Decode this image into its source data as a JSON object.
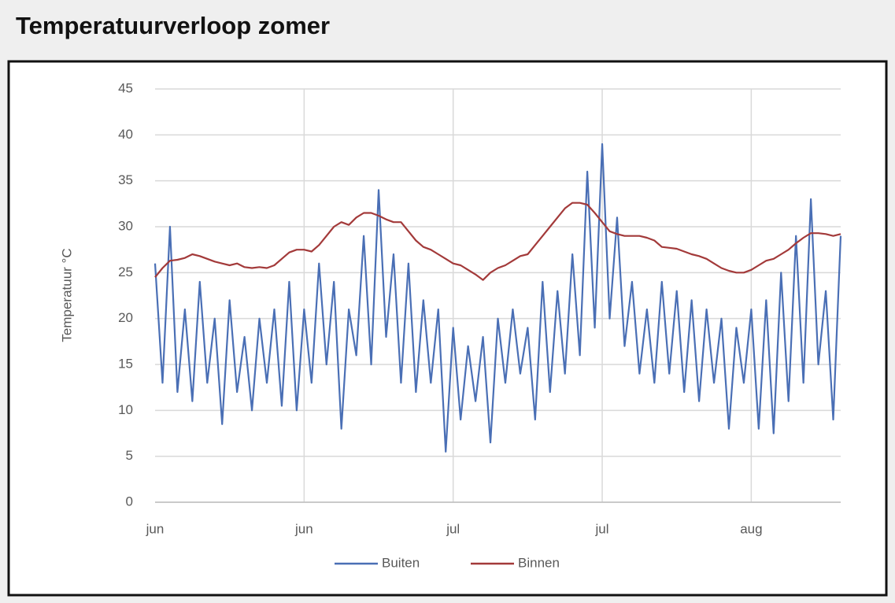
{
  "chart_data": {
    "type": "line",
    "title": "Temperatuurverloop zomer",
    "y_label": "Temperatuur °C",
    "categories": [
      "jun",
      null,
      null,
      null,
      null,
      null,
      null,
      null,
      null,
      null,
      null,
      null,
      null,
      null,
      null,
      null,
      null,
      null,
      null,
      null,
      "jun",
      null,
      null,
      null,
      null,
      null,
      null,
      null,
      null,
      null,
      null,
      null,
      null,
      null,
      null,
      null,
      null,
      null,
      null,
      null,
      "jul",
      null,
      null,
      null,
      null,
      null,
      null,
      null,
      null,
      null,
      null,
      null,
      null,
      null,
      null,
      null,
      null,
      null,
      null,
      null,
      "jul",
      null,
      null,
      null,
      null,
      null,
      null,
      null,
      null,
      null,
      null,
      null,
      null,
      null,
      null,
      null,
      null,
      null,
      null,
      null,
      "aug",
      null,
      null,
      null,
      null,
      null,
      null,
      null,
      null,
      null,
      null,
      null,
      null
    ],
    "series": [
      {
        "name": "Buiten",
        "color": "#4a6fb5",
        "values": [
          26,
          13,
          30,
          12,
          21,
          11,
          24,
          13,
          20,
          8.5,
          22,
          12,
          18,
          10,
          20,
          13,
          21,
          10.5,
          24,
          10,
          21,
          13,
          26,
          15,
          24,
          8,
          21,
          16,
          29,
          15,
          34,
          18,
          27,
          13,
          26,
          12,
          22,
          13,
          21,
          5.5,
          19,
          9,
          17,
          11,
          18,
          6.5,
          20,
          13,
          21,
          14,
          19,
          9,
          24,
          12,
          23,
          14,
          27,
          16,
          36,
          19,
          39,
          20,
          31,
          17,
          24,
          14,
          21,
          13,
          24,
          14,
          23,
          12,
          22,
          11,
          21,
          13,
          20,
          8,
          19,
          13,
          21,
          8,
          22,
          7.5,
          25,
          11,
          29,
          13,
          33,
          15,
          23,
          9,
          29
        ]
      },
      {
        "name": "Binnen",
        "color": "#a33a3a",
        "values": [
          24.5,
          25.5,
          26.3,
          26.4,
          26.6,
          27,
          26.8,
          26.5,
          26.2,
          26,
          25.8,
          26,
          25.6,
          25.5,
          25.6,
          25.5,
          25.8,
          26.5,
          27.2,
          27.5,
          27.5,
          27.3,
          28,
          29,
          30,
          30.5,
          30.2,
          31,
          31.5,
          31.5,
          31.2,
          30.8,
          30.5,
          30.5,
          29.5,
          28.5,
          27.8,
          27.5,
          27,
          26.5,
          26,
          25.8,
          25.3,
          24.8,
          24.2,
          25,
          25.5,
          25.8,
          26.3,
          26.8,
          27,
          28,
          29,
          30,
          31,
          32,
          32.6,
          32.6,
          32.4,
          31.5,
          30.5,
          29.5,
          29.2,
          29,
          29,
          29,
          28.8,
          28.5,
          27.8,
          27.7,
          27.6,
          27.3,
          27,
          26.8,
          26.5,
          26,
          25.5,
          25.2,
          25,
          25,
          25.3,
          25.8,
          26.3,
          26.5,
          27,
          27.5,
          28.2,
          28.8,
          29.3,
          29.3,
          29.2,
          29,
          29.2
        ]
      }
    ],
    "ylim": [
      0,
      45
    ],
    "yticks": [
      0,
      5,
      10,
      15,
      20,
      25,
      30,
      35,
      40,
      45
    ],
    "grid": true,
    "legend": "bottom"
  }
}
